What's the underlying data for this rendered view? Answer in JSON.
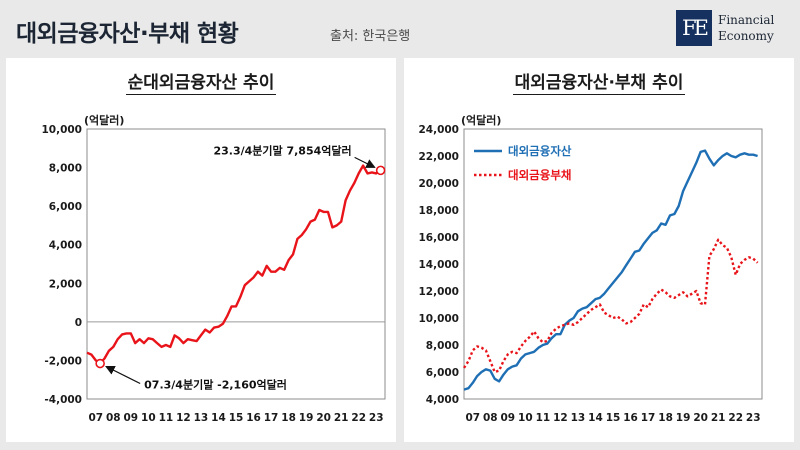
{
  "header": {
    "title": "대외금융자산·부채 현황",
    "source": "출처: 한국은행"
  },
  "logo": {
    "mark": "FE",
    "line1": "Financial",
    "line2": "Economy",
    "brand_color": "#16315f"
  },
  "chart_data": [
    {
      "type": "line",
      "title": "순대외금융자산 추이",
      "ylabel": "(억달러)",
      "ylim": [
        -4000,
        10000
      ],
      "yticks": [
        -4000,
        -2000,
        0,
        2000,
        4000,
        6000,
        8000,
        10000
      ],
      "ytick_labels": [
        "-4,000",
        "-2,000",
        "0",
        "2,000",
        "4,000",
        "6,000",
        "8,000",
        "10,000"
      ],
      "xlim": [
        2007.0,
        2024.0
      ],
      "xticks": [
        2007,
        2008,
        2009,
        2010,
        2011,
        2012,
        2013,
        2014,
        2015,
        2016,
        2017,
        2018,
        2019,
        2020,
        2021,
        2022,
        2023
      ],
      "xtick_labels": [
        "07",
        "08",
        "09",
        "10",
        "11",
        "12",
        "13",
        "14",
        "15",
        "16",
        "17",
        "18",
        "19",
        "20",
        "21",
        "22",
        "23"
      ],
      "series": [
        {
          "color": "#e8141a",
          "style": "solid",
          "x": [
            2007.0,
            2007.25,
            2007.5,
            2007.75,
            2008.0,
            2008.25,
            2008.5,
            2008.75,
            2009.0,
            2009.25,
            2009.5,
            2009.75,
            2010.0,
            2010.25,
            2010.5,
            2010.75,
            2011.0,
            2011.25,
            2011.5,
            2011.75,
            2012.0,
            2012.25,
            2012.5,
            2012.75,
            2013.0,
            2013.25,
            2013.5,
            2013.75,
            2014.0,
            2014.25,
            2014.5,
            2014.75,
            2015.0,
            2015.25,
            2015.5,
            2015.75,
            2016.0,
            2016.25,
            2016.5,
            2016.75,
            2017.0,
            2017.25,
            2017.5,
            2017.75,
            2018.0,
            2018.25,
            2018.5,
            2018.75,
            2019.0,
            2019.25,
            2019.5,
            2019.75,
            2020.0,
            2020.25,
            2020.5,
            2020.75,
            2021.0,
            2021.25,
            2021.5,
            2021.75,
            2022.0,
            2022.25,
            2022.5,
            2022.75,
            2023.0,
            2023.25,
            2023.5,
            2023.75
          ],
          "values": [
            -1600,
            -1700,
            -2000,
            -2160,
            -1900,
            -1500,
            -1300,
            -900,
            -650,
            -600,
            -600,
            -1100,
            -900,
            -1100,
            -850,
            -900,
            -1100,
            -1300,
            -1200,
            -1300,
            -700,
            -850,
            -1100,
            -900,
            -950,
            -1000,
            -700,
            -400,
            -550,
            -300,
            -250,
            -100,
            300,
            800,
            800,
            1300,
            1900,
            2100,
            2300,
            2600,
            2400,
            2900,
            2600,
            2600,
            2800,
            2700,
            3200,
            3500,
            4300,
            4500,
            4800,
            5200,
            5300,
            5800,
            5700,
            5700,
            4900,
            5000,
            5200,
            6300,
            6800,
            7200,
            7700,
            8100,
            7700,
            7750,
            7700,
            7854
          ]
        }
      ],
      "annotations": [
        {
          "text": "23.3/4분기말 7,854억달러",
          "x": 2023.75,
          "y": 7854
        },
        {
          "text": "07.3/4분기말 -2,160억달러",
          "x": 2007.75,
          "y": -2160
        }
      ]
    },
    {
      "type": "line",
      "title": "대외금융자산·부채 추이",
      "ylabel": "(억달러)",
      "ylim": [
        4000,
        24000
      ],
      "yticks": [
        4000,
        6000,
        8000,
        10000,
        12000,
        14000,
        16000,
        18000,
        20000,
        22000,
        24000
      ],
      "ytick_labels": [
        "4,000",
        "6,000",
        "8,000",
        "10,000",
        "12,000",
        "14,000",
        "16,000",
        "18,000",
        "20,000",
        "22,000",
        "24,000"
      ],
      "xlim": [
        2007.0,
        2024.0
      ],
      "xticks": [
        2007,
        2008,
        2009,
        2010,
        2011,
        2012,
        2013,
        2014,
        2015,
        2016,
        2017,
        2018,
        2019,
        2020,
        2021,
        2022,
        2023
      ],
      "xtick_labels": [
        "07",
        "08",
        "09",
        "10",
        "11",
        "12",
        "13",
        "14",
        "15",
        "16",
        "17",
        "18",
        "19",
        "20",
        "21",
        "22",
        "23"
      ],
      "legend_position": "top-left",
      "series": [
        {
          "name": "대외금융자산",
          "color": "#1f6fb5",
          "style": "solid",
          "x": [
            2007.0,
            2007.25,
            2007.5,
            2007.75,
            2008.0,
            2008.25,
            2008.5,
            2008.75,
            2009.0,
            2009.25,
            2009.5,
            2009.75,
            2010.0,
            2010.25,
            2010.5,
            2010.75,
            2011.0,
            2011.25,
            2011.5,
            2011.75,
            2012.0,
            2012.25,
            2012.5,
            2012.75,
            2013.0,
            2013.25,
            2013.5,
            2013.75,
            2014.0,
            2014.25,
            2014.5,
            2014.75,
            2015.0,
            2015.25,
            2015.5,
            2015.75,
            2016.0,
            2016.25,
            2016.5,
            2016.75,
            2017.0,
            2017.25,
            2017.5,
            2017.75,
            2018.0,
            2018.25,
            2018.5,
            2018.75,
            2019.0,
            2019.25,
            2019.5,
            2019.75,
            2020.0,
            2020.25,
            2020.5,
            2020.75,
            2021.0,
            2021.25,
            2021.5,
            2021.75,
            2022.0,
            2022.25,
            2022.5,
            2022.75,
            2023.0,
            2023.25,
            2023.5,
            2023.75
          ],
          "values": [
            4700,
            4800,
            5200,
            5700,
            6000,
            6200,
            6100,
            5500,
            5300,
            5800,
            6200,
            6400,
            6500,
            7000,
            7300,
            7400,
            7500,
            7800,
            8000,
            8100,
            8500,
            8800,
            8800,
            9500,
            9800,
            10000,
            10500,
            10700,
            10800,
            11100,
            11400,
            11500,
            11800,
            12200,
            12600,
            13000,
            13400,
            13900,
            14400,
            14900,
            15000,
            15500,
            15900,
            16300,
            16500,
            17000,
            16900,
            17600,
            17700,
            18300,
            19400,
            20100,
            20800,
            21500,
            22300,
            22400,
            21800,
            21300,
            21700,
            22000,
            22200,
            22000,
            21900,
            22100,
            22200,
            22100,
            22100,
            22000
          ]
        },
        {
          "name": "대외금융부채",
          "color": "#e8141a",
          "style": "dotted",
          "x": [
            2007.0,
            2007.25,
            2007.5,
            2007.75,
            2008.0,
            2008.25,
            2008.5,
            2008.75,
            2009.0,
            2009.25,
            2009.5,
            2009.75,
            2010.0,
            2010.25,
            2010.5,
            2010.75,
            2011.0,
            2011.25,
            2011.5,
            2011.75,
            2012.0,
            2012.25,
            2012.5,
            2012.75,
            2013.0,
            2013.25,
            2013.5,
            2013.75,
            2014.0,
            2014.25,
            2014.5,
            2014.75,
            2015.0,
            2015.25,
            2015.5,
            2015.75,
            2016.0,
            2016.25,
            2016.5,
            2016.75,
            2017.0,
            2017.25,
            2017.5,
            2017.75,
            2018.0,
            2018.25,
            2018.5,
            2018.75,
            2019.0,
            2019.25,
            2019.5,
            2019.75,
            2020.0,
            2020.25,
            2020.5,
            2020.75,
            2021.0,
            2021.25,
            2021.5,
            2021.75,
            2022.0,
            2022.25,
            2022.5,
            2022.75,
            2023.0,
            2023.25,
            2023.5,
            2023.75
          ],
          "values": [
            6300,
            6800,
            7600,
            7900,
            7800,
            7600,
            6800,
            6000,
            6100,
            6800,
            7300,
            7500,
            7400,
            7900,
            8300,
            8600,
            9000,
            8500,
            8200,
            8300,
            8900,
            9200,
            9400,
            9500,
            9600,
            9500,
            9700,
            10000,
            10300,
            10600,
            10800,
            11000,
            10400,
            10200,
            10000,
            10100,
            9900,
            9600,
            9700,
            10000,
            10300,
            11000,
            10800,
            11400,
            11800,
            12100,
            11900,
            11600,
            11500,
            11700,
            11900,
            11600,
            11800,
            12000,
            11100,
            11000,
            14600,
            15100,
            15800,
            15400,
            15200,
            14500,
            13200,
            14000,
            14300,
            14500,
            14400,
            14100
          ]
        }
      ]
    }
  ]
}
